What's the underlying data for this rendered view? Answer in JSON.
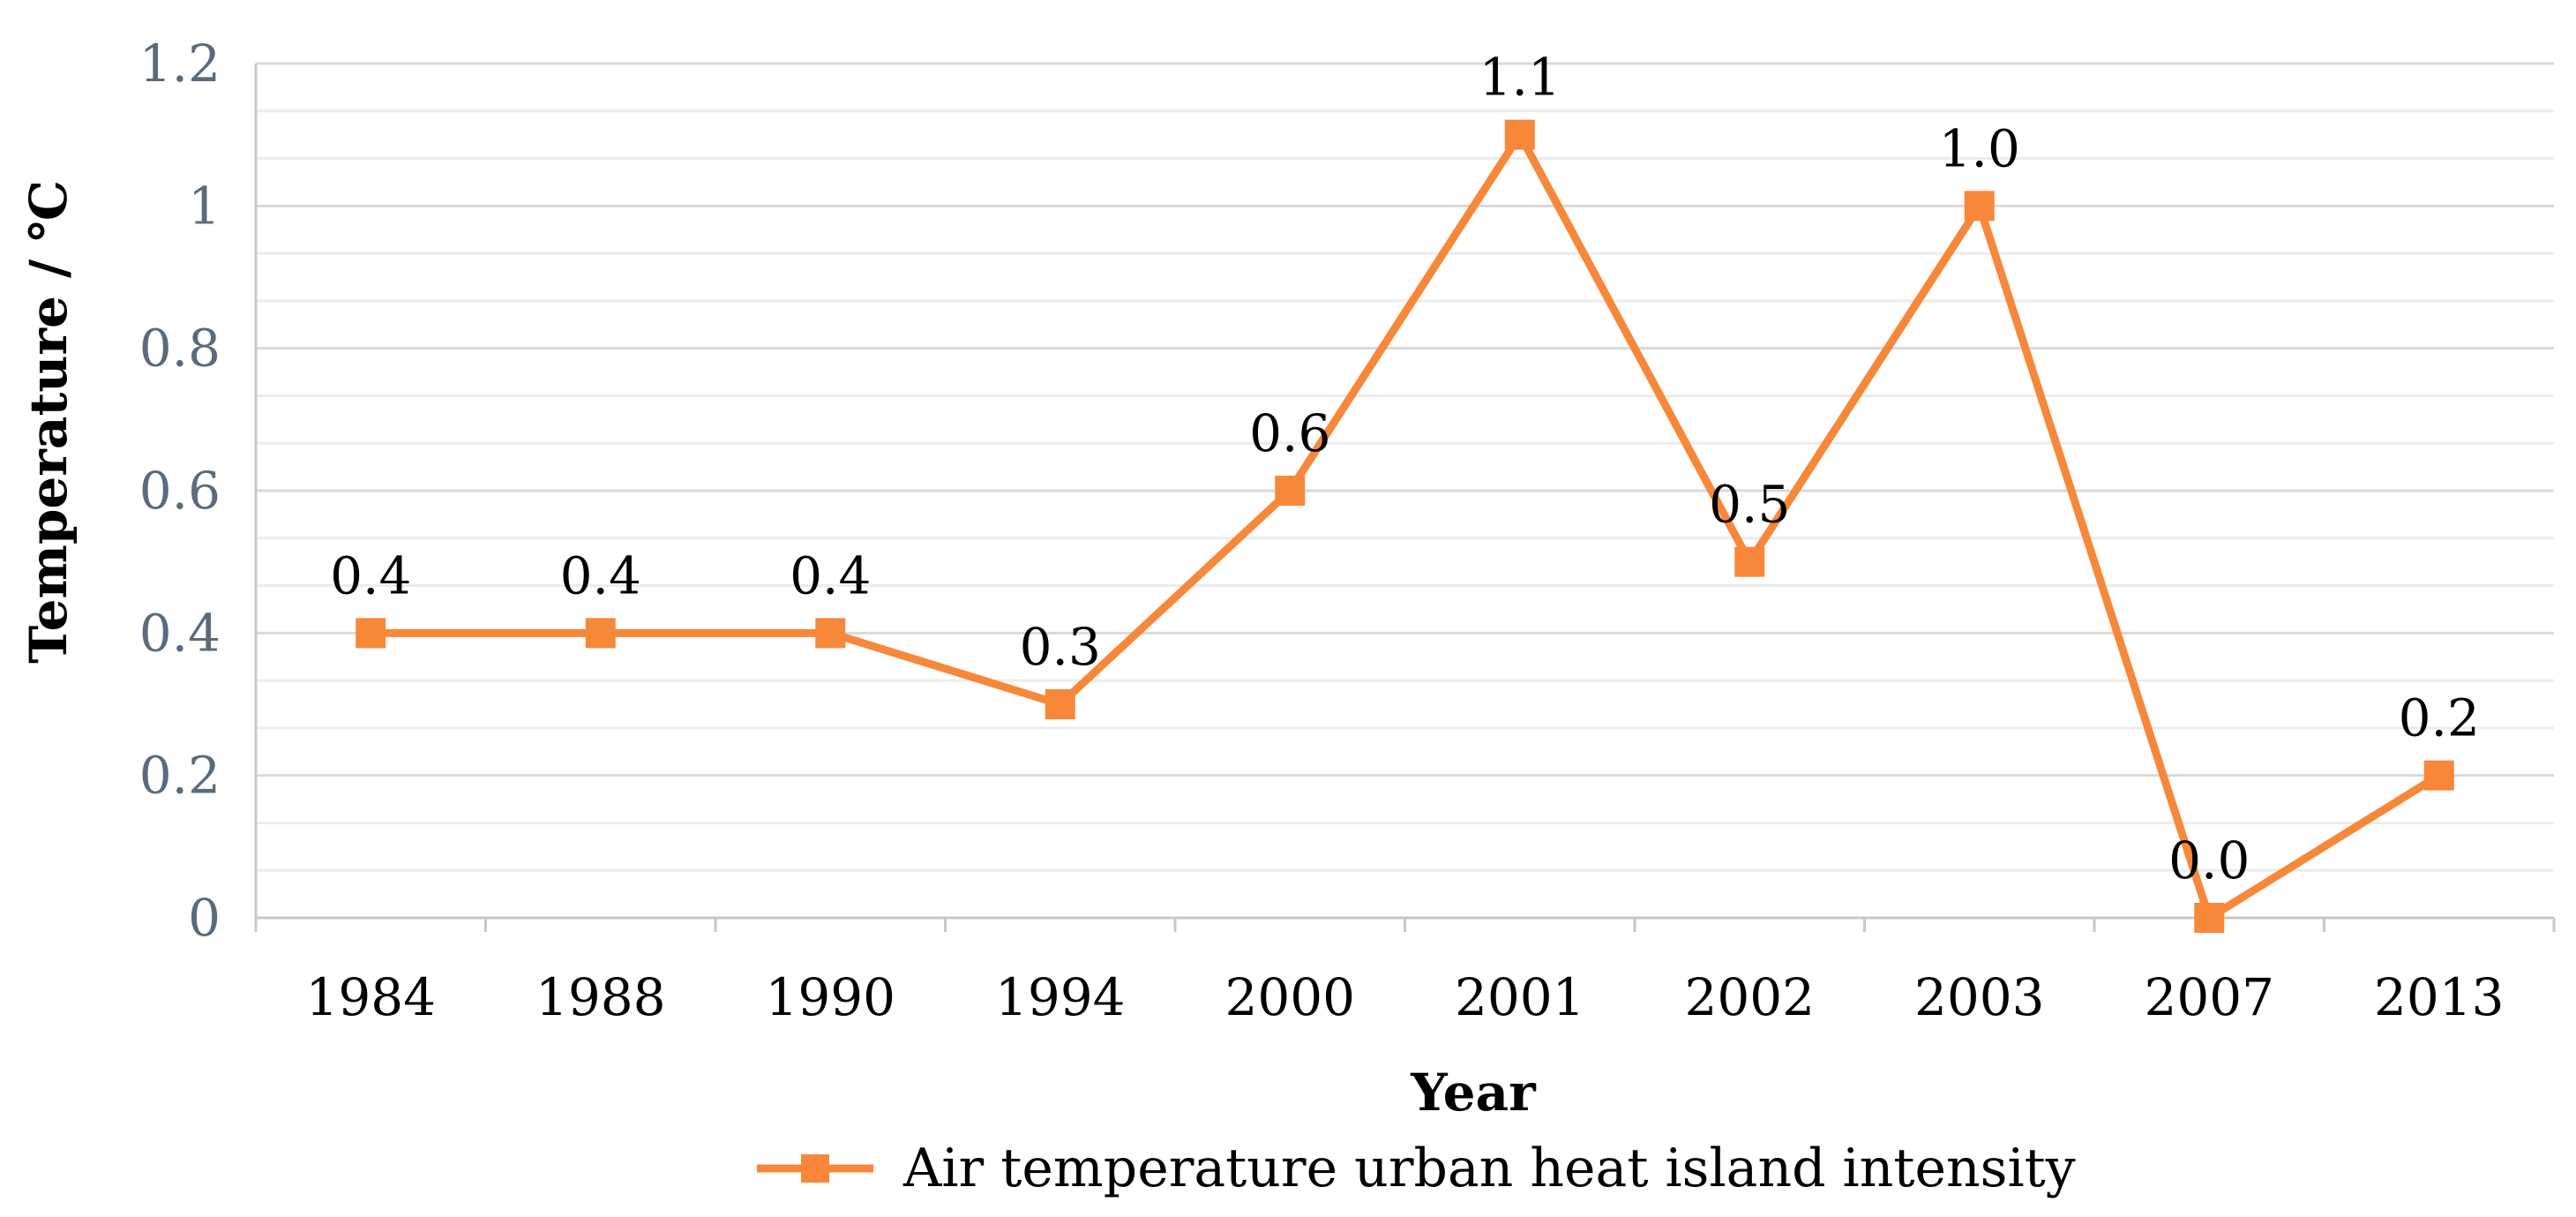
{
  "chart_data": {
    "type": "line",
    "title": "",
    "xlabel": "Year",
    "ylabel": "Temperature / ℃",
    "categories": [
      "1984",
      "1988",
      "1990",
      "1994",
      "2000",
      "2001",
      "2002",
      "2003",
      "2007",
      "2013"
    ],
    "series": [
      {
        "name": "Air temperature urban heat island intensity",
        "values": [
          0.4,
          0.4,
          0.4,
          0.3,
          0.6,
          1.1,
          0.5,
          1.0,
          0.0,
          0.2
        ],
        "labels": [
          "0.4",
          "0.4",
          "0.4",
          "0.3",
          "0.6",
          "1.1",
          "0.5",
          "1.0",
          "0.0",
          "0.2"
        ],
        "color": "#F7883A"
      }
    ],
    "ylim": [
      0,
      1.2
    ],
    "yticks": [
      0,
      0.2,
      0.4,
      0.6,
      0.8,
      1,
      1.2
    ],
    "ytick_labels": [
      "0",
      "0.2",
      "0.4",
      "0.6",
      "0.8",
      "1",
      "1.2"
    ],
    "minor_gridlines_per_major": 2,
    "grid": true,
    "legend": "bottom-center",
    "colors": {
      "line": "#F7883A",
      "grid": "#d9d9d9",
      "axis": "#c8c8c8"
    }
  }
}
